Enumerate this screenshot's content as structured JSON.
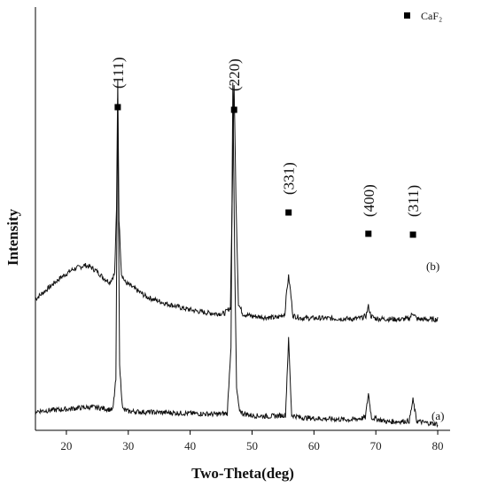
{
  "chart_data": {
    "type": "line",
    "xlabel": "Two-Theta(deg)",
    "ylabel": "Intensity",
    "xlim": [
      15,
      82
    ],
    "x_ticks": [
      20,
      30,
      40,
      50,
      60,
      70,
      80
    ],
    "y_ticks": [],
    "grid": false,
    "legend": {
      "position": "top-right",
      "marker": "filled-square",
      "label": "CaF₂"
    },
    "peak_markers_x": [
      28.3,
      47.1,
      55.9,
      68.8,
      76.0
    ],
    "peak_annotations": [
      {
        "x": 28.3,
        "text": "(111)"
      },
      {
        "x": 47.1,
        "text": "(220)"
      },
      {
        "x": 55.9,
        "text": "(331)"
      },
      {
        "x": 68.8,
        "text": "(400)"
      },
      {
        "x": 76.0,
        "text": "(311)"
      }
    ],
    "series": [
      {
        "label": "(b)",
        "x": [
          15,
          17,
          19,
          21,
          23,
          24,
          25,
          26,
          27,
          27.8,
          28.1,
          28.3,
          28.5,
          28.9,
          29.5,
          31,
          33,
          36,
          39,
          42,
          44,
          45.5,
          46.5,
          46.8,
          47.1,
          47.4,
          47.8,
          48.5,
          50,
          52,
          54,
          55.3,
          55.6,
          55.9,
          56.2,
          56.6,
          58,
          61,
          64,
          66,
          67.5,
          68.4,
          68.8,
          69.2,
          70,
          72,
          74,
          75.4,
          76.0,
          76.6,
          78,
          80
        ],
        "y": [
          0.31,
          0.335,
          0.36,
          0.38,
          0.39,
          0.385,
          0.375,
          0.36,
          0.35,
          0.37,
          0.52,
          0.83,
          0.5,
          0.37,
          0.35,
          0.335,
          0.315,
          0.3,
          0.288,
          0.279,
          0.276,
          0.276,
          0.29,
          0.55,
          0.82,
          0.55,
          0.3,
          0.275,
          0.27,
          0.267,
          0.266,
          0.275,
          0.33,
          0.363,
          0.33,
          0.271,
          0.265,
          0.265,
          0.264,
          0.263,
          0.265,
          0.27,
          0.293,
          0.27,
          0.264,
          0.263,
          0.262,
          0.264,
          0.278,
          0.263,
          0.262,
          0.262
        ]
      },
      {
        "label": "(a)",
        "x": [
          15,
          18,
          20,
          22,
          24,
          26,
          27.5,
          28.0,
          28.3,
          28.6,
          29.1,
          30,
          33,
          36,
          40,
          44,
          46.0,
          46.6,
          46.9,
          47.2,
          47.5,
          47.9,
          48.5,
          50,
          53,
          55.4,
          55.9,
          56.4,
          58,
          62,
          66,
          68.3,
          68.8,
          69.3,
          72,
          75.4,
          76.0,
          76.6,
          78,
          80
        ],
        "y": [
          0.045,
          0.048,
          0.05,
          0.053,
          0.055,
          0.052,
          0.048,
          0.12,
          0.78,
          0.15,
          0.05,
          0.045,
          0.043,
          0.042,
          0.04,
          0.038,
          0.04,
          0.2,
          0.82,
          0.4,
          0.1,
          0.05,
          0.04,
          0.035,
          0.033,
          0.036,
          0.215,
          0.036,
          0.03,
          0.027,
          0.025,
          0.03,
          0.087,
          0.03,
          0.02,
          0.022,
          0.072,
          0.022,
          0.018,
          0.015
        ]
      }
    ]
  }
}
